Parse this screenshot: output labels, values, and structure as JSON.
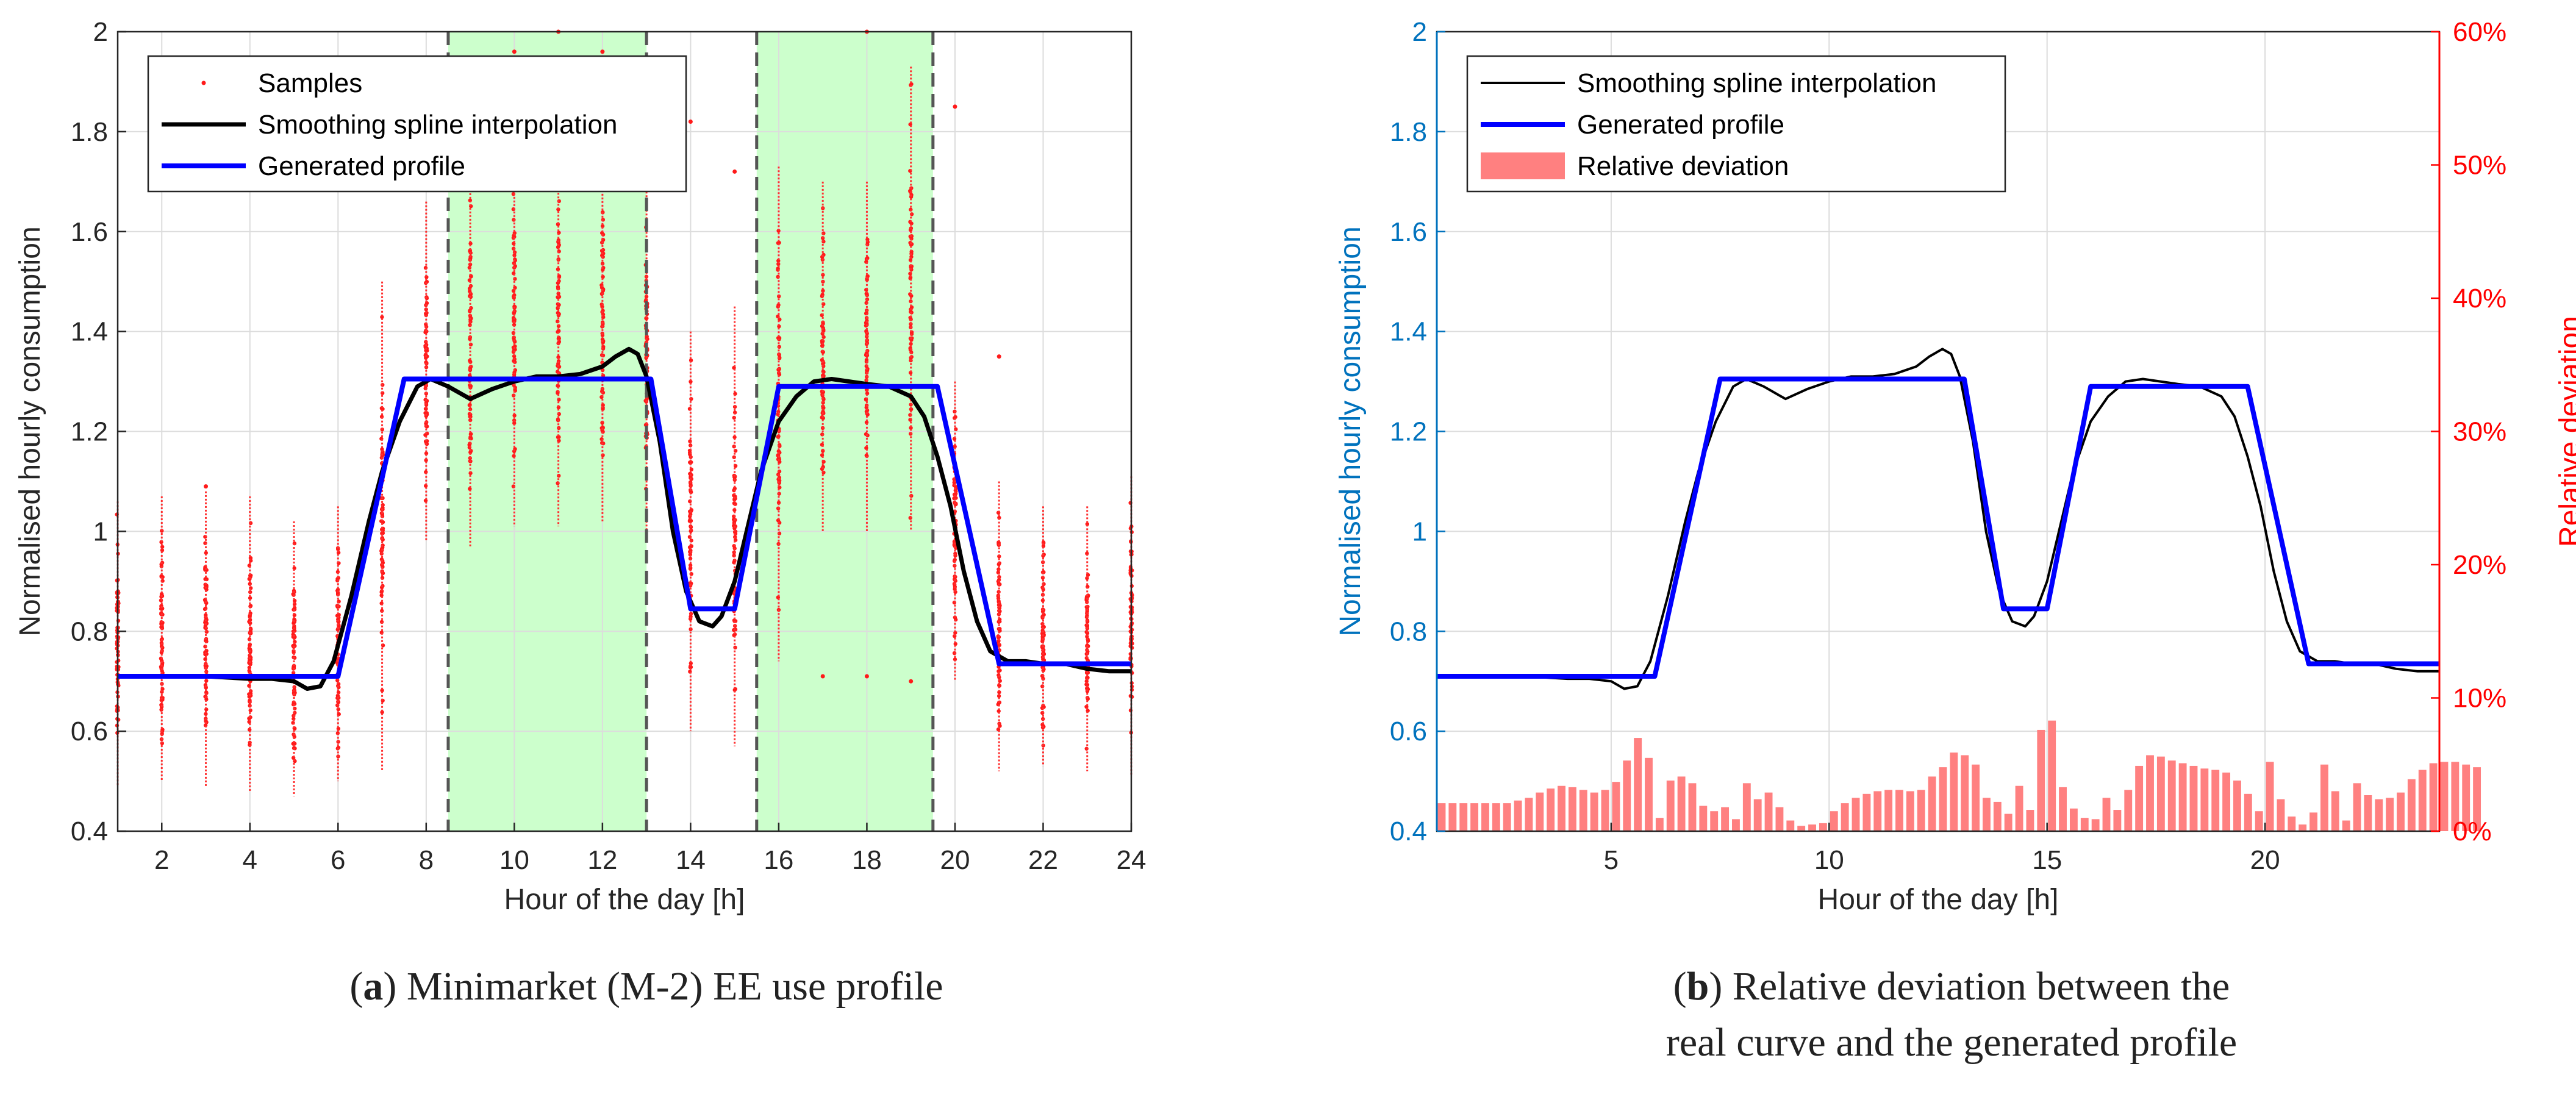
{
  "chart_data": [
    {
      "type": "line",
      "panel_label": "a",
      "caption": "Minimarket (M-2) EE use profile",
      "xlabel": "Hour of the day [h]",
      "ylabel": "Normalised hourly consumption",
      "xlim": [
        1,
        24
      ],
      "ylim": [
        0.4,
        2
      ],
      "xticks": [
        2,
        4,
        6,
        8,
        10,
        12,
        14,
        16,
        18,
        20,
        22,
        24
      ],
      "yticks": [
        0.4,
        0.6,
        0.8,
        1,
        1.2,
        1.4,
        1.6,
        1.8,
        2
      ],
      "ytick_labels": [
        "0.4",
        "0.6",
        "0.8",
        "1",
        "1.2",
        "1.4",
        "1.6",
        "1.8",
        "2"
      ],
      "grid": true,
      "legend": [
        "Samples",
        "Smoothing spline interpolation",
        "Generated profile"
      ],
      "shaded_bands": [
        {
          "x0": 8.5,
          "x1": 13
        },
        {
          "x0": 15.5,
          "x1": 19.5
        }
      ],
      "dashed_vlines": [
        8.5,
        13,
        15.5,
        19.5
      ],
      "samples": [
        {
          "hour": 1,
          "min": 0.49,
          "max": 1.06,
          "mean": 0.71,
          "out": []
        },
        {
          "hour": 2,
          "min": 0.5,
          "max": 1.07,
          "mean": 0.71,
          "out": []
        },
        {
          "hour": 3,
          "min": 0.49,
          "max": 1.08,
          "mean": 0.71,
          "out": [
            1.09
          ]
        },
        {
          "hour": 4,
          "min": 0.48,
          "max": 1.07,
          "mean": 0.71,
          "out": []
        },
        {
          "hour": 5,
          "min": 0.47,
          "max": 1.02,
          "mean": 0.7,
          "out": []
        },
        {
          "hour": 6,
          "min": 0.5,
          "max": 1.05,
          "mean": 0.72,
          "out": []
        },
        {
          "hour": 7,
          "min": 0.52,
          "max": 1.5,
          "mean": 1.05,
          "out": []
        },
        {
          "hour": 8,
          "min": 0.98,
          "max": 1.66,
          "mean": 1.3,
          "out": []
        },
        {
          "hour": 9,
          "min": 0.97,
          "max": 1.75,
          "mean": 1.27,
          "out": []
        },
        {
          "hour": 10,
          "min": 1.01,
          "max": 1.75,
          "mean": 1.3,
          "out": [
            1.96
          ]
        },
        {
          "hour": 11,
          "min": 1.01,
          "max": 1.78,
          "mean": 1.31,
          "out": [
            2.0
          ]
        },
        {
          "hour": 12,
          "min": 1.02,
          "max": 1.8,
          "mean": 1.33,
          "out": [
            1.96
          ]
        },
        {
          "hour": 13,
          "min": 0.98,
          "max": 1.68,
          "mean": 1.34,
          "out": [
            1.86
          ]
        },
        {
          "hour": 14,
          "min": 0.6,
          "max": 1.4,
          "mean": 0.85,
          "out": [
            1.82
          ]
        },
        {
          "hour": 15,
          "min": 0.57,
          "max": 1.45,
          "mean": 0.84,
          "out": [
            1.72
          ]
        },
        {
          "hour": 16,
          "min": 0.74,
          "max": 1.73,
          "mean": 1.2,
          "out": []
        },
        {
          "hour": 17,
          "min": 1.0,
          "max": 1.7,
          "mean": 1.3,
          "out": [
            0.71
          ]
        },
        {
          "hour": 18,
          "min": 1.0,
          "max": 1.7,
          "mean": 1.3,
          "out": [
            0.71,
            2.0
          ]
        },
        {
          "hour": 19,
          "min": 1.0,
          "max": 1.93,
          "mean": 1.29,
          "out": [
            0.7
          ]
        },
        {
          "hour": 20,
          "min": 0.7,
          "max": 1.3,
          "mean": 1.0,
          "out": [
            1.85
          ]
        },
        {
          "hour": 21,
          "min": 0.52,
          "max": 1.1,
          "mean": 0.74,
          "out": [
            1.35
          ]
        },
        {
          "hour": 22,
          "min": 0.53,
          "max": 1.05,
          "mean": 0.73,
          "out": []
        },
        {
          "hour": 23,
          "min": 0.52,
          "max": 1.05,
          "mean": 0.73,
          "out": []
        },
        {
          "hour": 24,
          "min": 0.51,
          "max": 1.11,
          "mean": 0.73,
          "out": []
        }
      ],
      "series": [
        {
          "name": "Smoothing spline interpolation",
          "color": "#000000",
          "x": [
            1,
            2,
            3,
            4,
            4.5,
            5,
            5.3,
            5.6,
            5.9,
            6.3,
            6.7,
            7,
            7.4,
            7.8,
            8.1,
            8.5,
            9,
            9.5,
            10,
            10.5,
            11,
            11.5,
            12,
            12.3,
            12.6,
            12.8,
            13,
            13.3,
            13.6,
            13.9,
            14.2,
            14.5,
            14.7,
            15,
            15.3,
            15.6,
            16,
            16.4,
            16.8,
            17.2,
            17.6,
            18,
            18.5,
            19,
            19.3,
            19.6,
            19.9,
            20.2,
            20.5,
            20.8,
            21.2,
            21.6,
            22,
            22.5,
            23,
            23.5,
            24
          ],
          "y": [
            0.71,
            0.71,
            0.71,
            0.705,
            0.705,
            0.7,
            0.685,
            0.69,
            0.74,
            0.87,
            1.02,
            1.12,
            1.22,
            1.29,
            1.305,
            1.29,
            1.265,
            1.285,
            1.3,
            1.31,
            1.31,
            1.315,
            1.33,
            1.35,
            1.365,
            1.355,
            1.31,
            1.18,
            1.0,
            0.88,
            0.82,
            0.81,
            0.83,
            0.9,
            1.01,
            1.12,
            1.22,
            1.27,
            1.3,
            1.305,
            1.3,
            1.295,
            1.29,
            1.27,
            1.23,
            1.15,
            1.05,
            0.92,
            0.82,
            0.76,
            0.74,
            0.74,
            0.735,
            0.735,
            0.725,
            0.72,
            0.72
          ]
        },
        {
          "name": "Generated profile",
          "color": "#0000ff",
          "x": [
            1,
            6,
            7.5,
            13.1,
            14,
            15,
            16,
            19.6,
            21,
            24
          ],
          "y": [
            0.71,
            0.71,
            1.305,
            1.305,
            0.845,
            0.845,
            1.29,
            1.29,
            0.735,
            0.735
          ]
        }
      ]
    },
    {
      "type": "line",
      "panel_label": "b",
      "caption_line1": "Relative deviation between the",
      "caption_line2": "real curve and the generated profile",
      "xlabel": "Hour of the day [h]",
      "ylabel": "Normalised hourly consumption",
      "y2label": "Relative deviation",
      "xlim": [
        1,
        24
      ],
      "ylim": [
        0.4,
        2
      ],
      "y2lim": [
        0,
        60
      ],
      "xticks": [
        5,
        10,
        15,
        20
      ],
      "yticks": [
        0.4,
        0.6,
        0.8,
        1,
        1.2,
        1.4,
        1.6,
        1.8,
        2
      ],
      "ytick_labels": [
        "0.4",
        "0.6",
        "0.8",
        "1",
        "1.2",
        "1.4",
        "1.6",
        "1.8",
        "2"
      ],
      "y2ticks": [
        0,
        10,
        20,
        30,
        40,
        50,
        60
      ],
      "y2tick_labels": [
        "0%",
        "10%",
        "20%",
        "30%",
        "40%",
        "50%",
        "60%"
      ],
      "grid": true,
      "legend": [
        "Smoothing spline interpolation",
        "Generated profile",
        "Relative deviation"
      ],
      "series": [
        {
          "name": "Smoothing spline interpolation",
          "color": "#000000",
          "x": [
            1,
            2,
            3,
            4,
            4.5,
            5,
            5.3,
            5.6,
            5.9,
            6.3,
            6.7,
            7,
            7.4,
            7.8,
            8.1,
            8.5,
            9,
            9.5,
            10,
            10.5,
            11,
            11.5,
            12,
            12.3,
            12.6,
            12.8,
            13,
            13.3,
            13.6,
            13.9,
            14.2,
            14.5,
            14.7,
            15,
            15.3,
            15.6,
            16,
            16.4,
            16.8,
            17.2,
            17.6,
            18,
            18.5,
            19,
            19.3,
            19.6,
            19.9,
            20.2,
            20.5,
            20.8,
            21.2,
            21.6,
            22,
            22.5,
            23,
            23.5,
            24
          ],
          "y": [
            0.71,
            0.71,
            0.71,
            0.705,
            0.705,
            0.7,
            0.685,
            0.69,
            0.74,
            0.87,
            1.02,
            1.12,
            1.22,
            1.29,
            1.305,
            1.29,
            1.265,
            1.285,
            1.3,
            1.31,
            1.31,
            1.315,
            1.33,
            1.35,
            1.365,
            1.355,
            1.31,
            1.18,
            1.0,
            0.88,
            0.82,
            0.81,
            0.83,
            0.9,
            1.01,
            1.12,
            1.22,
            1.27,
            1.3,
            1.305,
            1.3,
            1.295,
            1.29,
            1.27,
            1.23,
            1.15,
            1.05,
            0.92,
            0.82,
            0.76,
            0.74,
            0.74,
            0.735,
            0.735,
            0.725,
            0.72,
            0.72
          ]
        },
        {
          "name": "Generated profile",
          "color": "#0000ff",
          "x": [
            1,
            6,
            7.5,
            13.1,
            14,
            15,
            16,
            19.6,
            21,
            24
          ],
          "y": [
            0.71,
            0.71,
            1.305,
            1.305,
            0.845,
            0.845,
            1.29,
            1.29,
            0.735,
            0.735
          ]
        },
        {
          "name": "Relative deviation",
          "type": "bar",
          "axis": "right",
          "color": "#ff8080",
          "x_start": 1.0,
          "x_step": 0.25,
          "values_percent": [
            2.1,
            2.1,
            2.1,
            2.1,
            2.1,
            2.1,
            2.1,
            2.3,
            2.5,
            2.9,
            3.2,
            3.4,
            3.3,
            3.1,
            2.9,
            3.1,
            3.7,
            5.3,
            7.0,
            5.5,
            1.0,
            3.8,
            4.1,
            3.6,
            1.9,
            1.5,
            1.8,
            0.9,
            3.6,
            2.4,
            2.9,
            1.8,
            0.8,
            0.4,
            0.5,
            0.6,
            1.5,
            2.1,
            2.5,
            2.8,
            3.0,
            3.1,
            3.1,
            3.0,
            3.1,
            4.1,
            4.8,
            5.9,
            5.7,
            5.0,
            2.5,
            2.2,
            1.3,
            3.4,
            1.6,
            7.6,
            8.3,
            3.3,
            1.7,
            1.0,
            0.9,
            2.5,
            1.6,
            3.1,
            4.9,
            5.7,
            5.6,
            5.3,
            5.1,
            4.9,
            4.7,
            4.6,
            4.4,
            3.8,
            2.8,
            1.5,
            5.2,
            2.4,
            1.1,
            0.5,
            1.4,
            5.0,
            3.0,
            0.8,
            3.6,
            2.7,
            2.4,
            2.5,
            2.9,
            3.9,
            4.6,
            5.1,
            5.2,
            5.2,
            5.0,
            4.8
          ]
        }
      ]
    }
  ]
}
